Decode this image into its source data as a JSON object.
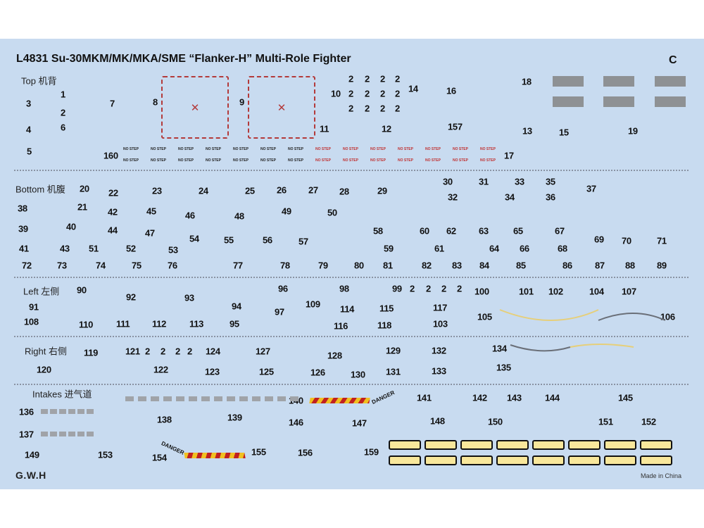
{
  "header": {
    "code_title": "L4831  Su-30MKM/MK/MKA/SME “Flanker-H” Multi-Role Fighter",
    "sheet_letter": "C"
  },
  "sections": {
    "top": {
      "label": "Top 机背",
      "numbers": [
        "3",
        "1",
        "2",
        "7",
        "8",
        "9",
        "4",
        "6",
        "5",
        "160",
        "10",
        "14",
        "16",
        "18",
        "11",
        "12",
        "157",
        "13",
        "15",
        "19",
        "17",
        "2",
        "2",
        "2",
        "2",
        "2",
        "2",
        "2",
        "2",
        "2",
        "2",
        "2",
        "2"
      ]
    },
    "bottom": {
      "label": "Bottom 机腹",
      "numbers": [
        "20",
        "22",
        "23",
        "24",
        "25",
        "26",
        "27",
        "28",
        "29",
        "30",
        "31",
        "33",
        "35",
        "32",
        "34",
        "36",
        "37",
        "38",
        "21",
        "42",
        "45",
        "46",
        "48",
        "49",
        "50",
        "39",
        "40",
        "44",
        "47",
        "54",
        "55",
        "56",
        "57",
        "58",
        "60",
        "62",
        "63",
        "65",
        "67",
        "41",
        "43",
        "51",
        "52",
        "53",
        "59",
        "61",
        "64",
        "66",
        "68",
        "69",
        "70",
        "71",
        "72",
        "73",
        "74",
        "75",
        "76",
        "77",
        "78",
        "79",
        "80",
        "81",
        "82",
        "83",
        "84",
        "85",
        "86",
        "87",
        "88",
        "89"
      ]
    },
    "left": {
      "label": "Left 左侧",
      "numbers": [
        "90",
        "92",
        "93",
        "94",
        "96",
        "98",
        "99",
        "2",
        "2",
        "2",
        "2",
        "100",
        "101",
        "102",
        "104",
        "107",
        "91",
        "109",
        "114",
        "115",
        "117",
        "97",
        "108",
        "110",
        "111",
        "112",
        "113",
        "95",
        "116",
        "118",
        "103",
        "105",
        "106"
      ]
    },
    "right": {
      "label": "Right 右侧",
      "numbers": [
        "119",
        "121",
        "2",
        "2",
        "2",
        "2",
        "124",
        "127",
        "128",
        "129",
        "132",
        "134",
        "120",
        "122",
        "123",
        "125",
        "126",
        "130",
        "131",
        "133",
        "135"
      ]
    },
    "intakes": {
      "label": "Intakes 进气道",
      "numbers": [
        "136",
        "138",
        "139",
        "140",
        "141",
        "142",
        "143",
        "144",
        "145",
        "137",
        "146",
        "147",
        "148",
        "150",
        "151",
        "152",
        "149",
        "153",
        "154",
        "155",
        "156",
        "159"
      ]
    }
  },
  "stencils": {
    "no_step": "NO STEP",
    "danger": "DANGER"
  },
  "footer": {
    "brand_logo": "G.W.H",
    "origin": "Made in China"
  },
  "colors": {
    "sheet_background": "#c8dbf0",
    "warning_red": "#b33a3a",
    "panel_grey": "#8e9194",
    "walkway_yellow": "#f8e79b"
  }
}
